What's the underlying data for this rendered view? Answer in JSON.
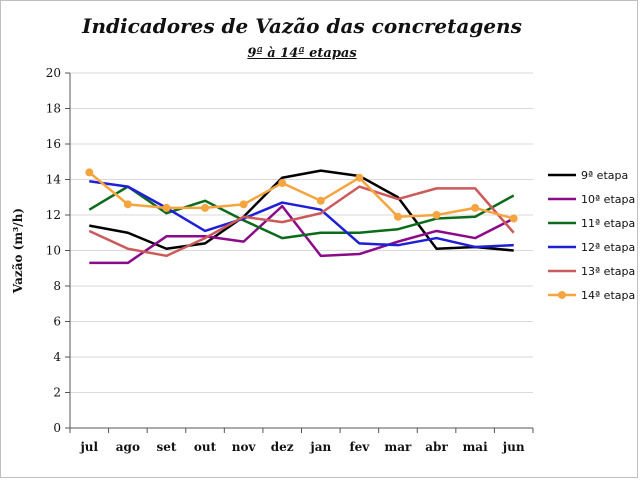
{
  "chart_data": {
    "type": "line",
    "title": "Indicadores de Vazão das concretagens",
    "subtitle": "9ª à 14ª etapas",
    "xlabel": "",
    "ylabel": "Vazão (m³/h)",
    "ylim": [
      0,
      20
    ],
    "yticks": [
      "0",
      "2",
      "4",
      "6",
      "8",
      "10",
      "12",
      "14",
      "16",
      "18",
      "20"
    ],
    "categories": [
      "jul",
      "ago",
      "set",
      "out",
      "nov",
      "dez",
      "jan",
      "fev",
      "mar",
      "abr",
      "mai",
      "jun"
    ],
    "grid": "horizontal",
    "legend": "right",
    "series": [
      {
        "name": "9ª etapa",
        "color": "#000000",
        "marker": "none",
        "values": [
          11.4,
          11.0,
          10.1,
          10.4,
          11.9,
          14.1,
          14.5,
          14.2,
          13.0,
          10.1,
          10.2,
          10.0
        ]
      },
      {
        "name": "10ª etapa",
        "color": "#8b0a8b",
        "marker": "none",
        "values": [
          9.3,
          9.3,
          10.8,
          10.8,
          10.5,
          12.5,
          9.7,
          9.8,
          10.5,
          11.1,
          10.7,
          11.8
        ]
      },
      {
        "name": "11ª etapa",
        "color": "#0b6b1a",
        "marker": "none",
        "values": [
          12.3,
          13.6,
          12.1,
          12.8,
          11.7,
          10.7,
          11.0,
          11.0,
          11.2,
          11.8,
          11.9,
          13.1
        ]
      },
      {
        "name": "12ª etapa",
        "color": "#1f1fd6",
        "marker": "none",
        "values": [
          13.9,
          13.6,
          12.4,
          11.1,
          11.8,
          12.7,
          12.3,
          10.4,
          10.3,
          10.7,
          10.2,
          10.3
        ]
      },
      {
        "name": "13ª etapa",
        "color": "#cc5a5a",
        "marker": "none",
        "values": [
          11.1,
          10.1,
          9.7,
          10.7,
          11.9,
          11.6,
          12.1,
          13.6,
          12.9,
          13.5,
          13.5,
          11.0
        ]
      },
      {
        "name": "14ª etapa",
        "color": "#f5a540",
        "marker": "circle",
        "values": [
          14.4,
          12.6,
          12.4,
          12.4,
          12.6,
          13.8,
          12.8,
          14.1,
          11.9,
          12.0,
          12.4,
          11.8
        ]
      }
    ]
  }
}
